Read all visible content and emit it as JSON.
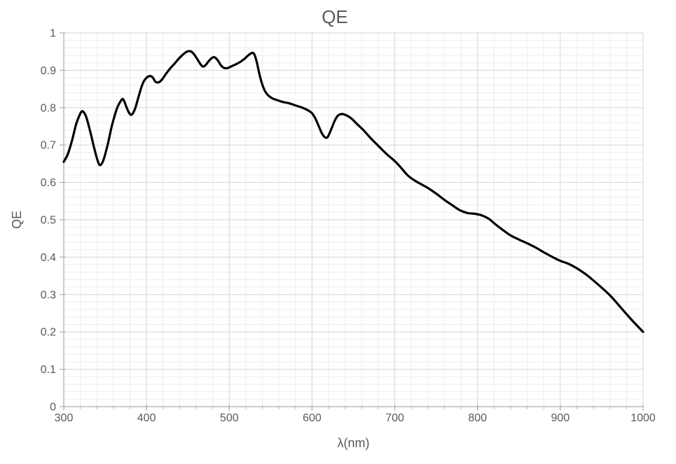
{
  "chart": {
    "title": "QE",
    "x_axis_title": "λ(nm)",
    "y_axis_title": "QE",
    "colors": {
      "curve": "#000000",
      "major_grid": "#d6d6d6",
      "minor_grid": "#ededed",
      "axis_line": "#acacac",
      "tick_mark": "#acacac",
      "tick_label": "#595959",
      "title_text": "#595959"
    }
  },
  "chart_data": {
    "type": "line",
    "title": "QE",
    "xlabel": "λ(nm)",
    "ylabel": "QE",
    "xlim": [
      300,
      1000
    ],
    "ylim": [
      0,
      1
    ],
    "x_major_step": 100,
    "x_minor_step": 20,
    "y_major_step": 0.1,
    "y_minor_step": 0.02,
    "x_ticks": [
      300,
      400,
      500,
      600,
      700,
      800,
      900,
      1000
    ],
    "y_ticks": [
      0,
      0.1,
      0.2,
      0.3,
      0.4,
      0.5,
      0.6,
      0.7,
      0.8,
      0.9,
      1
    ],
    "grid": "major+minor",
    "legend": "none",
    "series": [
      {
        "name": "QE",
        "x": [
          300,
          305,
          310,
          315,
          320,
          323,
          327,
          332,
          337,
          341,
          344,
          348,
          353,
          358,
          364,
          369,
          372,
          376,
          379,
          382,
          386,
          390,
          394,
          398,
          403,
          407,
          411,
          415,
          419,
          424,
          429,
          434,
          439,
          444,
          449,
          453,
          457,
          461,
          465,
          468,
          471,
          475,
          479,
          482,
          486,
          490,
          494,
          498,
          503,
          508,
          513,
          518,
          523,
          527,
          530,
          533,
          536,
          539,
          543,
          547,
          552,
          558,
          565,
          572,
          580,
          588,
          595,
          600,
          604,
          608,
          612,
          616,
          619,
          623,
          627,
          631,
          636,
          641,
          647,
          654,
          662,
          671,
          680,
          690,
          700,
          708,
          716,
          724,
          732,
          740,
          750,
          760,
          770,
          779,
          788,
          797,
          806,
          814,
          822,
          831,
          840,
          850,
          860,
          870,
          880,
          890,
          900,
          910,
          920,
          932,
          945,
          959,
          972,
          985,
          1000
        ],
        "y": [
          0.655,
          0.676,
          0.712,
          0.756,
          0.784,
          0.79,
          0.776,
          0.736,
          0.69,
          0.658,
          0.646,
          0.66,
          0.7,
          0.75,
          0.796,
          0.818,
          0.822,
          0.8,
          0.786,
          0.781,
          0.796,
          0.826,
          0.856,
          0.875,
          0.884,
          0.882,
          0.869,
          0.868,
          0.876,
          0.892,
          0.906,
          0.918,
          0.931,
          0.942,
          0.95,
          0.951,
          0.944,
          0.931,
          0.917,
          0.91,
          0.913,
          0.924,
          0.933,
          0.935,
          0.927,
          0.913,
          0.906,
          0.906,
          0.911,
          0.916,
          0.922,
          0.93,
          0.94,
          0.946,
          0.944,
          0.924,
          0.894,
          0.868,
          0.845,
          0.833,
          0.825,
          0.82,
          0.815,
          0.812,
          0.806,
          0.8,
          0.793,
          0.785,
          0.771,
          0.751,
          0.731,
          0.72,
          0.722,
          0.741,
          0.763,
          0.778,
          0.783,
          0.78,
          0.772,
          0.757,
          0.74,
          0.718,
          0.698,
          0.676,
          0.657,
          0.638,
          0.618,
          0.605,
          0.595,
          0.585,
          0.57,
          0.553,
          0.538,
          0.525,
          0.518,
          0.516,
          0.511,
          0.502,
          0.487,
          0.472,
          0.458,
          0.447,
          0.437,
          0.426,
          0.413,
          0.401,
          0.39,
          0.382,
          0.37,
          0.352,
          0.328,
          0.3,
          0.268,
          0.235,
          0.2
        ]
      }
    ]
  }
}
